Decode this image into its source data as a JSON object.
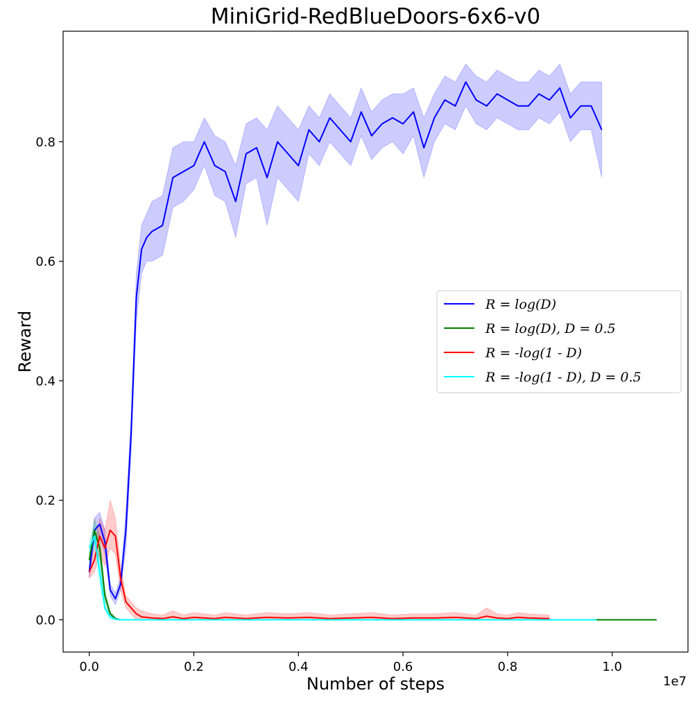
{
  "chart_data": {
    "type": "line",
    "title": "MiniGrid-RedBlueDoors-6x6-v0",
    "xlabel": "Number of steps",
    "ylabel": "Reward",
    "x_offset_label": "1e7",
    "xlim": [
      -0.05,
      1.145
    ],
    "ylim": [
      -0.054,
      0.985
    ],
    "x_ticks": [
      0.0,
      0.2,
      0.4,
      0.6,
      0.8,
      1.0
    ],
    "x_tick_labels": [
      "0.0",
      "0.2",
      "0.4",
      "0.6",
      "0.8",
      "1.0"
    ],
    "y_ticks": [
      0.0,
      0.2,
      0.4,
      0.6,
      0.8
    ],
    "y_tick_labels": [
      "0.0",
      "0.2",
      "0.4",
      "0.6",
      "0.8"
    ],
    "grid": false,
    "legend_position": "center-right",
    "series": [
      {
        "name": "R = log(D)",
        "color": "#0000ff",
        "x": [
          0.0,
          0.01,
          0.02,
          0.03,
          0.04,
          0.05,
          0.06,
          0.07,
          0.08,
          0.09,
          0.1,
          0.11,
          0.12,
          0.14,
          0.16,
          0.18,
          0.2,
          0.22,
          0.24,
          0.26,
          0.28,
          0.3,
          0.32,
          0.34,
          0.36,
          0.38,
          0.4,
          0.42,
          0.44,
          0.46,
          0.48,
          0.5,
          0.52,
          0.54,
          0.56,
          0.58,
          0.6,
          0.62,
          0.64,
          0.66,
          0.68,
          0.7,
          0.72,
          0.74,
          0.76,
          0.78,
          0.8,
          0.82,
          0.84,
          0.86,
          0.88,
          0.9,
          0.92,
          0.94,
          0.96,
          0.98
        ],
        "y": [
          0.08,
          0.15,
          0.16,
          0.13,
          0.05,
          0.035,
          0.06,
          0.15,
          0.31,
          0.54,
          0.62,
          0.64,
          0.65,
          0.66,
          0.74,
          0.75,
          0.76,
          0.8,
          0.76,
          0.75,
          0.7,
          0.78,
          0.79,
          0.74,
          0.8,
          0.78,
          0.76,
          0.82,
          0.8,
          0.84,
          0.82,
          0.8,
          0.85,
          0.81,
          0.83,
          0.84,
          0.83,
          0.85,
          0.79,
          0.84,
          0.87,
          0.86,
          0.9,
          0.87,
          0.86,
          0.88,
          0.87,
          0.86,
          0.86,
          0.88,
          0.87,
          0.89,
          0.84,
          0.86,
          0.86,
          0.82
        ],
        "band_low": [
          0.07,
          0.13,
          0.14,
          0.11,
          0.04,
          0.025,
          0.05,
          0.12,
          0.28,
          0.5,
          0.58,
          0.6,
          0.6,
          0.61,
          0.69,
          0.7,
          0.72,
          0.76,
          0.71,
          0.7,
          0.64,
          0.73,
          0.74,
          0.66,
          0.74,
          0.72,
          0.7,
          0.78,
          0.76,
          0.8,
          0.78,
          0.76,
          0.81,
          0.77,
          0.79,
          0.8,
          0.78,
          0.81,
          0.74,
          0.8,
          0.83,
          0.82,
          0.86,
          0.83,
          0.82,
          0.84,
          0.83,
          0.82,
          0.82,
          0.84,
          0.83,
          0.85,
          0.8,
          0.82,
          0.82,
          0.74
        ],
        "band_high": [
          0.09,
          0.17,
          0.18,
          0.15,
          0.06,
          0.045,
          0.07,
          0.18,
          0.34,
          0.58,
          0.66,
          0.68,
          0.7,
          0.71,
          0.79,
          0.8,
          0.8,
          0.84,
          0.81,
          0.8,
          0.76,
          0.83,
          0.84,
          0.82,
          0.86,
          0.84,
          0.82,
          0.86,
          0.84,
          0.88,
          0.86,
          0.84,
          0.89,
          0.85,
          0.87,
          0.88,
          0.88,
          0.89,
          0.84,
          0.88,
          0.91,
          0.9,
          0.93,
          0.91,
          0.9,
          0.92,
          0.91,
          0.9,
          0.9,
          0.92,
          0.91,
          0.93,
          0.88,
          0.9,
          0.9,
          0.9
        ]
      },
      {
        "name": "R = log(D), D = 0.5",
        "color": "#008000",
        "x": [
          0.0,
          0.01,
          0.02,
          0.03,
          0.04,
          0.05,
          0.06,
          0.1,
          0.5,
          1.0,
          1.085
        ],
        "y": [
          0.1,
          0.15,
          0.12,
          0.04,
          0.01,
          0.002,
          0.0,
          0.0,
          0.0,
          0.0,
          0.0
        ],
        "band_low": [
          0.09,
          0.13,
          0.1,
          0.03,
          0.005,
          0.0,
          0.0,
          0.0,
          0.0,
          0.0,
          0.0
        ],
        "band_high": [
          0.11,
          0.17,
          0.14,
          0.05,
          0.015,
          0.004,
          0.0,
          0.0,
          0.0,
          0.0,
          0.0
        ]
      },
      {
        "name": "R = -log(1 - D)",
        "color": "#ff0000",
        "x": [
          0.0,
          0.01,
          0.02,
          0.03,
          0.04,
          0.05,
          0.06,
          0.07,
          0.08,
          0.09,
          0.1,
          0.12,
          0.14,
          0.16,
          0.18,
          0.2,
          0.22,
          0.24,
          0.26,
          0.28,
          0.3,
          0.34,
          0.38,
          0.42,
          0.46,
          0.5,
          0.54,
          0.58,
          0.62,
          0.66,
          0.7,
          0.74,
          0.76,
          0.78,
          0.8,
          0.82,
          0.84,
          0.88
        ],
        "y": [
          0.08,
          0.1,
          0.14,
          0.12,
          0.15,
          0.14,
          0.07,
          0.03,
          0.02,
          0.01,
          0.005,
          0.003,
          0.002,
          0.005,
          0.002,
          0.004,
          0.003,
          0.002,
          0.004,
          0.003,
          0.002,
          0.004,
          0.003,
          0.004,
          0.002,
          0.003,
          0.004,
          0.002,
          0.003,
          0.003,
          0.004,
          0.002,
          0.006,
          0.003,
          0.002,
          0.004,
          0.003,
          0.002
        ],
        "band_low": [
          0.07,
          0.08,
          0.11,
          0.09,
          0.12,
          0.11,
          0.05,
          0.02,
          0.01,
          0.0,
          0.0,
          0.0,
          0.0,
          0.0,
          0.0,
          0.0,
          0.0,
          0.0,
          0.0,
          0.0,
          0.0,
          0.0,
          0.0,
          0.0,
          0.0,
          0.0,
          0.0,
          0.0,
          0.0,
          0.0,
          0.0,
          0.0,
          0.0,
          0.0,
          0.0,
          0.0,
          0.0,
          0.0
        ],
        "band_high": [
          0.09,
          0.12,
          0.17,
          0.15,
          0.2,
          0.17,
          0.09,
          0.04,
          0.03,
          0.02,
          0.015,
          0.01,
          0.008,
          0.015,
          0.008,
          0.012,
          0.01,
          0.008,
          0.012,
          0.01,
          0.008,
          0.012,
          0.01,
          0.012,
          0.008,
          0.01,
          0.012,
          0.008,
          0.01,
          0.01,
          0.012,
          0.008,
          0.02,
          0.01,
          0.008,
          0.012,
          0.01,
          0.008
        ]
      },
      {
        "name": "R = -log(1 - D), D = 0.5",
        "color": "#00ffff",
        "x": [
          0.0,
          0.01,
          0.02,
          0.03,
          0.04,
          0.05,
          0.06,
          0.1,
          0.5,
          0.97
        ],
        "y": [
          0.12,
          0.14,
          0.08,
          0.02,
          0.005,
          0.001,
          0.0,
          0.0,
          0.0,
          0.0
        ],
        "band_low": [
          0.11,
          0.12,
          0.06,
          0.015,
          0.0,
          0.0,
          0.0,
          0.0,
          0.0,
          0.0
        ],
        "band_high": [
          0.13,
          0.16,
          0.1,
          0.025,
          0.01,
          0.003,
          0.0,
          0.0,
          0.0,
          0.0
        ]
      }
    ]
  }
}
